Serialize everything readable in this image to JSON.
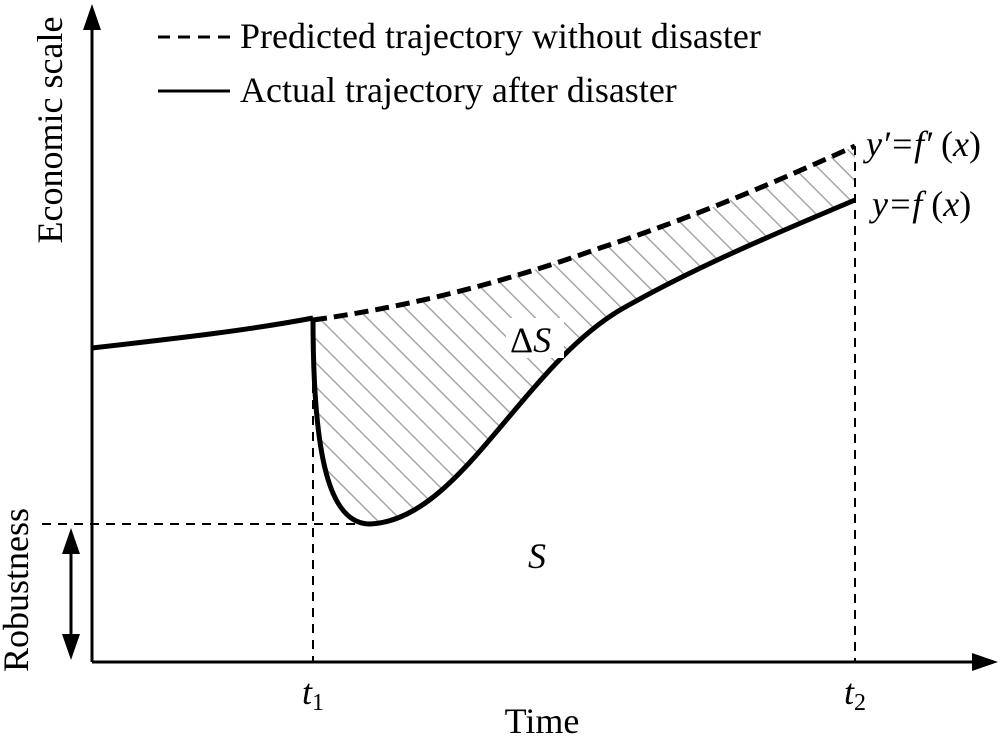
{
  "legend": {
    "predicted_label": "Predicted trajectory without disaster",
    "actual_label": "Actual trajectory after disaster"
  },
  "axes": {
    "y_label": "Economic scale",
    "x_label": "Time",
    "robustness_label": "Robustness"
  },
  "ticks": {
    "t1_base": "t",
    "t1_sub": "1",
    "t2_base": "t",
    "t2_sub": "2"
  },
  "curve_labels": {
    "predicted_eq_a": "y′=f′",
    "predicted_eq_b": " (",
    "predicted_eq_c": "x",
    "predicted_eq_d": ")",
    "actual_eq_a": "y=f",
    "actual_eq_b": " (",
    "actual_eq_c": "x",
    "actual_eq_d": ")"
  },
  "region_labels": {
    "loss_delta": "Δ",
    "loss_symbol": "S",
    "base_symbol": "S"
  },
  "colors": {
    "line": "#000000",
    "hatch": "#a6a6a6",
    "background": "#ffffff"
  }
}
